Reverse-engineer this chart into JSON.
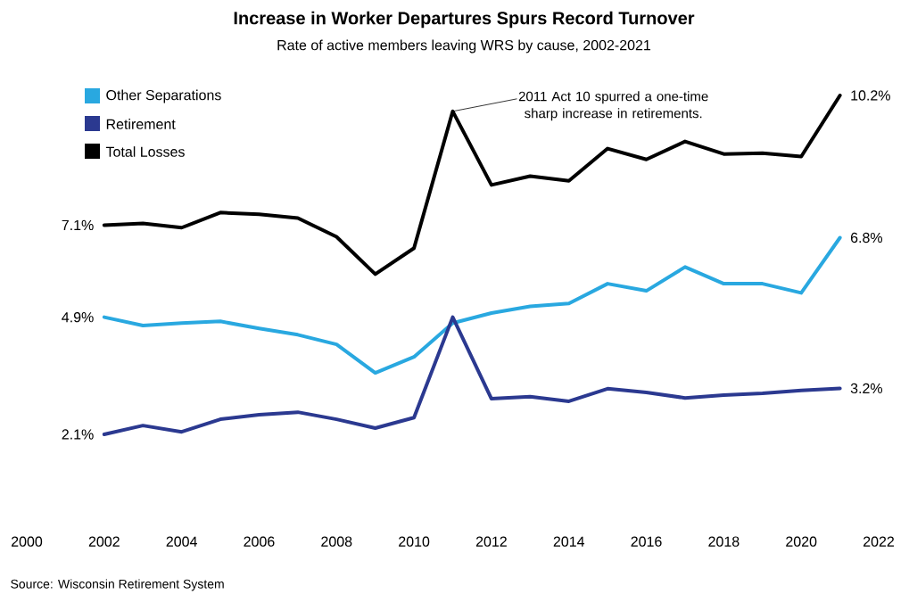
{
  "chart_data": {
    "type": "line",
    "title": "Increase in Worker Departures Spurs Record Turnover",
    "subtitle": "Rate of active members leaving WRS by cause, 2002-2021",
    "x": [
      2002,
      2003,
      2004,
      2005,
      2006,
      2007,
      2008,
      2009,
      2010,
      2011,
      2012,
      2013,
      2014,
      2015,
      2016,
      2017,
      2018,
      2019,
      2020,
      2021
    ],
    "series": [
      {
        "name": "Other Separations",
        "color": "#29a8e0",
        "values": [
          4.9,
          4.7,
          4.76,
          4.8,
          4.63,
          4.48,
          4.25,
          3.57,
          3.95,
          4.76,
          5.0,
          5.16,
          5.23,
          5.7,
          5.53,
          6.1,
          5.7,
          5.7,
          5.48,
          6.8
        ],
        "value_labels": [
          "4.9%",
          null,
          null,
          null,
          null,
          null,
          null,
          null,
          null,
          null,
          null,
          null,
          null,
          null,
          null,
          null,
          null,
          null,
          null,
          "6.8%"
        ]
      },
      {
        "name": "Retirement",
        "color": "#2b3990",
        "values": [
          2.1,
          2.31,
          2.16,
          2.46,
          2.57,
          2.63,
          2.46,
          2.25,
          2.5,
          4.9,
          2.95,
          3.0,
          2.89,
          3.19,
          3.1,
          2.97,
          3.04,
          3.08,
          3.15,
          3.2
        ],
        "value_labels": [
          "2.1%",
          null,
          null,
          null,
          null,
          null,
          null,
          null,
          null,
          null,
          null,
          null,
          null,
          null,
          null,
          null,
          null,
          null,
          null,
          "3.2%"
        ]
      },
      {
        "name": "Total Losses",
        "color": "#000000",
        "values": [
          7.1,
          7.14,
          7.04,
          7.4,
          7.36,
          7.27,
          6.82,
          5.93,
          6.55,
          9.82,
          8.06,
          8.27,
          8.16,
          8.93,
          8.67,
          9.1,
          8.8,
          8.82,
          8.74,
          10.2
        ],
        "value_labels": [
          "7.1%",
          null,
          null,
          null,
          null,
          null,
          null,
          null,
          null,
          null,
          null,
          null,
          null,
          null,
          null,
          null,
          null,
          null,
          null,
          "10.2%"
        ]
      }
    ],
    "xlim": [
      2000,
      2022
    ],
    "xticks": [
      2000,
      2002,
      2004,
      2006,
      2008,
      2010,
      2012,
      2014,
      2016,
      2018,
      2020,
      2022
    ],
    "tick_labels": "x",
    "grid": false,
    "legend": "top left",
    "marker": "none",
    "line_style": "solid",
    "annotations": [
      {
        "text": "2011 Act 10 spurred a one-time sharp increase in retirements.",
        "x": 2011,
        "y": 9.82
      },
      "Source: Wisconsin Retirement System"
    ]
  }
}
